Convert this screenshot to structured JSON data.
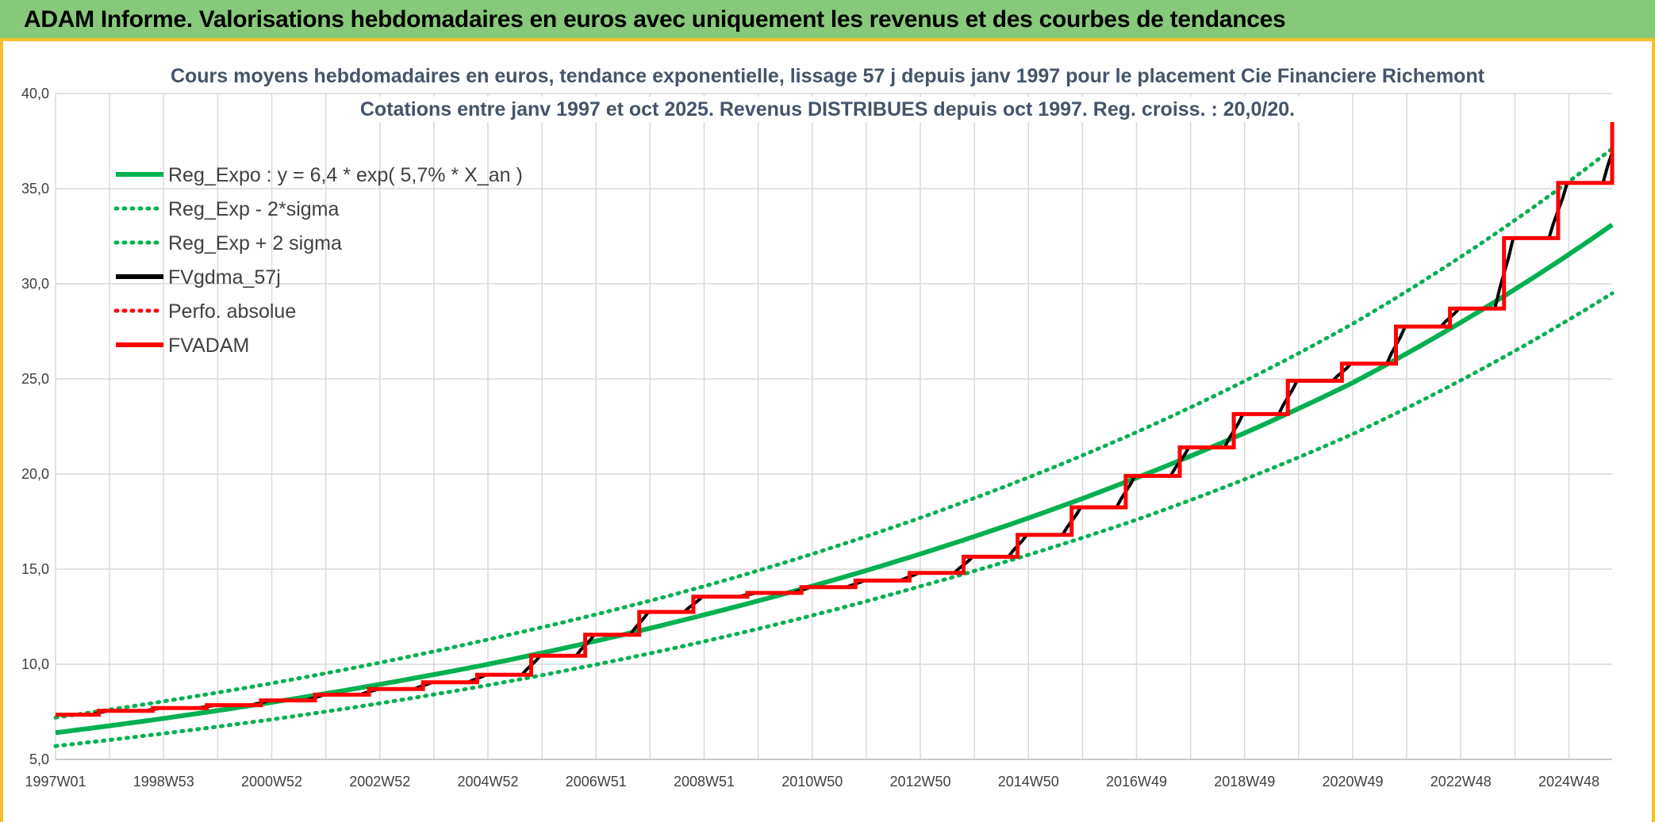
{
  "banner": {
    "title": "ADAM Informe. Valorisations hebdomadaires en euros avec uniquement les revenus et des courbes de tendances"
  },
  "colors": {
    "banner_bg": "#86c97a",
    "banner_accent": "#f2c12e",
    "green": "#00b050",
    "black": "#000000",
    "red": "#ff0000",
    "grid": "#d9d9d9",
    "title_text": "#44546a"
  },
  "chart_data": {
    "type": "line",
    "title": "Cours moyens hebdomadaires en euros, tendance exponentielle, lissage 57 j depuis janv 1997 pour le placement Cie Financiere Richemont",
    "subtitle": "Cotations entre janv 1997 et oct 2025. Revenus DISTRIBUES depuis oct 1997. Reg. croiss. : 20,0/20.",
    "xlabel": "",
    "ylabel": "",
    "ylim": [
      5,
      40
    ],
    "y_ticks": [
      "5,0",
      "10,0",
      "15,0",
      "20,0",
      "25,0",
      "30,0",
      "35,0",
      "40,0"
    ],
    "x_tick_labels": [
      "1997W01",
      "1998W53",
      "2000W52",
      "2002W52",
      "2004W52",
      "2006W51",
      "2008W51",
      "2010W50",
      "2012W50",
      "2014W50",
      "2016W49",
      "2018W49",
      "2020W49",
      "2022W48",
      "2024W48"
    ],
    "x_tick_years": [
      1997.0,
      1999.0,
      2001.0,
      2003.0,
      2005.0,
      2007.0,
      2009.0,
      2011.0,
      2013.0,
      2015.0,
      2017.0,
      2019.0,
      2021.0,
      2023.0,
      2025.0
    ],
    "x_range": [
      1997.0,
      2025.8
    ],
    "grid": true,
    "legend_position": "top-left",
    "series": [
      {
        "name": "Reg_Expo : y = 6,4 * exp( 5,7% *  X_an )",
        "style": "solid",
        "color": "#00b050",
        "x": [
          1997.0,
          2001.0,
          2005.0,
          2009.0,
          2013.0,
          2017.0,
          2021.0,
          2025.8
        ],
        "y": [
          6.4,
          8.0,
          10.0,
          12.6,
          15.8,
          19.8,
          24.8,
          33.1
        ]
      },
      {
        "name": "Reg_Exp - 2*sigma",
        "style": "dotted",
        "color": "#00b050",
        "x": [
          1997.0,
          2001.0,
          2005.0,
          2009.0,
          2013.0,
          2017.0,
          2021.0,
          2025.8
        ],
        "y": [
          5.7,
          7.1,
          8.9,
          11.2,
          14.1,
          17.6,
          22.1,
          29.5
        ]
      },
      {
        "name": "Reg_Exp + 2 sigma",
        "style": "dotted",
        "color": "#00b050",
        "x": [
          1997.0,
          2001.0,
          2005.0,
          2009.0,
          2013.0,
          2017.0,
          2021.0,
          2025.8
        ],
        "y": [
          7.2,
          9.0,
          11.3,
          14.1,
          17.7,
          22.2,
          27.9,
          37.1
        ]
      },
      {
        "name": "FVgdma_57j",
        "style": "solid",
        "color": "#000000",
        "x": [
          1997.0,
          2025.8
        ],
        "y": [
          7.3,
          37.5
        ]
      },
      {
        "name": "Perfo. absolue",
        "style": "dotted",
        "color": "#ff0000",
        "x": [],
        "y": []
      },
      {
        "name": "FVADAM",
        "style": "step",
        "color": "#ff0000",
        "x": [
          1997.0,
          1997.8,
          1998.8,
          1999.8,
          2000.8,
          2001.8,
          2002.8,
          2003.8,
          2004.8,
          2005.8,
          2006.8,
          2007.8,
          2008.8,
          2009.8,
          2010.8,
          2011.8,
          2012.8,
          2013.8,
          2014.8,
          2015.8,
          2016.8,
          2017.8,
          2018.8,
          2019.8,
          2020.8,
          2021.8,
          2022.8,
          2023.8,
          2024.8,
          2025.8
        ],
        "y": [
          7.35,
          7.55,
          7.7,
          7.85,
          8.1,
          8.4,
          8.7,
          9.05,
          9.45,
          10.45,
          11.55,
          12.75,
          13.55,
          13.75,
          14.05,
          14.4,
          14.8,
          15.65,
          16.8,
          18.25,
          19.9,
          21.4,
          23.15,
          24.9,
          25.8,
          27.75,
          28.7,
          32.4,
          35.3,
          38.5
        ]
      }
    ]
  }
}
